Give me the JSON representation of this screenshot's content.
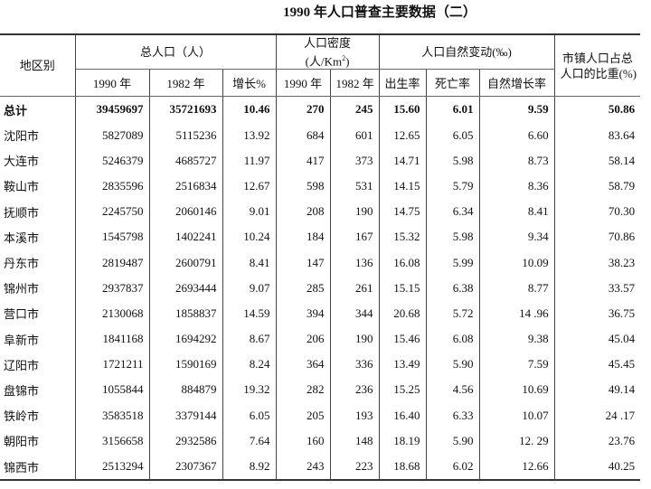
{
  "title": "1990 年人口普查主要数据（二）",
  "headers": {
    "region": "地区别",
    "total_pop": "总人口（人）",
    "density_line1": "人口密度",
    "density_line2": "(人/Km",
    "density_sup": "2",
    "density_close": ")",
    "natural": "人口自然变动(‰)",
    "urban_line1": "市镇人口占总",
    "urban_line2": "人口的比重(%)",
    "sub": [
      "1990 年",
      "1982 年",
      "增长%",
      "1990 年",
      "1982 年",
      "出生率",
      "死亡率",
      "自然增长率"
    ]
  },
  "rows": [
    [
      "总计",
      "39459697",
      "35721693",
      "10.46",
      "270",
      "245",
      "15.60",
      "6.01",
      "9.59",
      "50.86"
    ],
    [
      "沈阳市",
      "5827089",
      "5115236",
      "13.92",
      "684",
      "601",
      "12.65",
      "6.05",
      "6.60",
      "83.64"
    ],
    [
      "大连市",
      "5246379",
      "4685727",
      "11.97",
      "417",
      "373",
      "14.71",
      "5.98",
      "8.73",
      "58.14"
    ],
    [
      "鞍山市",
      "2835596",
      "2516834",
      "12.67",
      "598",
      "531",
      "14.15",
      "5.79",
      "8.36",
      "58.79"
    ],
    [
      "抚顺市",
      "2245750",
      "2060146",
      "9.01",
      "208",
      "190",
      "14.75",
      "6.34",
      "8.41",
      "70.30"
    ],
    [
      "本溪市",
      "1545798",
      "1402241",
      "10.24",
      "184",
      "167",
      "15.32",
      "5.98",
      "9.34",
      "70.86"
    ],
    [
      "丹东市",
      "2819487",
      "2600791",
      "8.41",
      "147",
      "136",
      "16.08",
      "5.99",
      "10.09",
      "38.23"
    ],
    [
      "锦州市",
      "2937837",
      "2693444",
      "9.07",
      "285",
      "261",
      "15.15",
      "6.38",
      "8.77",
      "33.57"
    ],
    [
      "营口市",
      "2130068",
      "1858837",
      "14.59",
      "394",
      "344",
      "20.68",
      "5.72",
      "14 .96",
      "36.75"
    ],
    [
      "阜新市",
      "1841168",
      "1694292",
      "8.67",
      "206",
      "190",
      "15.46",
      "6.08",
      "9.38",
      "45.04"
    ],
    [
      "辽阳市",
      "1721211",
      "1590169",
      "8.24",
      "364",
      "336",
      "13.49",
      "5.90",
      "7.59",
      "45.45"
    ],
    [
      "盘锦市",
      "1055844",
      "884879",
      "19.32",
      "282",
      "236",
      "15.25",
      "4.56",
      "10.69",
      "49.14"
    ],
    [
      "铁岭市",
      "3583518",
      "3379144",
      "6.05",
      "205",
      "193",
      "16.40",
      "6.33",
      "10.07",
      "24 .17"
    ],
    [
      "朝阳市",
      "3156658",
      "2932586",
      "7.64",
      "160",
      "148",
      "18.19",
      "5.90",
      "12. 29",
      "23.76"
    ],
    [
      "锦西市",
      "2513294",
      "2307367",
      "8.92",
      "243",
      "223",
      "18.68",
      "6.02",
      "12.66",
      "40.25"
    ]
  ]
}
